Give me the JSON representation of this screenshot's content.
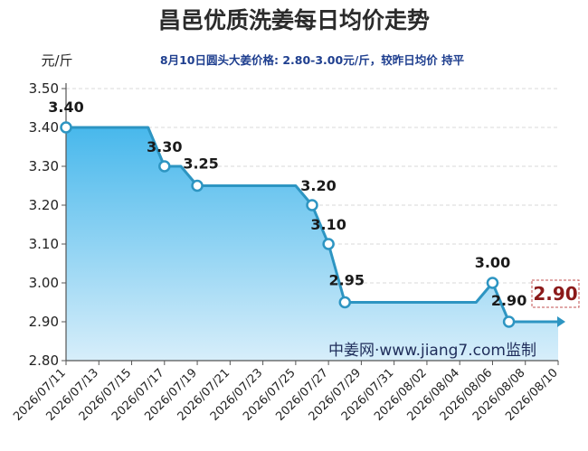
{
  "header": {
    "title": "昌邑优质洗姜每日均价走势",
    "subtitle": "8月10日圆头大姜价格: 2.80-3.00元/斤，较昨日均价 持平",
    "unit": "元/斤",
    "watermark": "中姜网·www.jiang7.com监制"
  },
  "colors": {
    "line": "#2d95c2",
    "area_top": "#48b8ec",
    "area_bottom": "#d7eefa",
    "grid": "#d8d8d8",
    "latest_text": "#8b1a1a",
    "latest_border": "#c05050"
  },
  "chart_data": {
    "type": "area",
    "title": "昌邑优质洗姜每日均价走势",
    "ylabel": "元/斤",
    "ylim": [
      2.8,
      3.5
    ],
    "yticks": [
      "2.80",
      "2.90",
      "3.00",
      "3.10",
      "3.20",
      "3.30",
      "3.40",
      "3.50"
    ],
    "xticks": [
      "2026/07/11",
      "2026/07/13",
      "2026/07/15",
      "2026/07/17",
      "2026/07/19",
      "2026/07/21",
      "2026/07/23",
      "2026/07/25",
      "2026/07/27",
      "2026/07/29",
      "2026/07/31",
      "2026/08/02",
      "2026/08/04",
      "2026/08/06",
      "2026/08/08",
      "2026/08/10"
    ],
    "grid": true,
    "x": [
      "2026/07/11",
      "2026/07/16",
      "2026/07/17",
      "2026/07/18",
      "2026/07/19",
      "2026/07/25",
      "2026/07/26",
      "2026/07/27",
      "2026/07/28",
      "2026/08/05",
      "2026/08/06",
      "2026/08/07",
      "2026/08/10"
    ],
    "y": [
      3.4,
      3.4,
      3.3,
      3.3,
      3.25,
      3.25,
      3.2,
      3.1,
      2.95,
      2.95,
      3.0,
      2.9,
      2.9
    ],
    "labeled_points": [
      {
        "x": "2026/07/11",
        "y": 3.4,
        "label": "3.40"
      },
      {
        "x": "2026/07/17",
        "y": 3.3,
        "label": "3.30"
      },
      {
        "x": "2026/07/19",
        "y": 3.25,
        "label": "3.25"
      },
      {
        "x": "2026/07/26",
        "y": 3.2,
        "label": "3.20"
      },
      {
        "x": "2026/07/27",
        "y": 3.1,
        "label": "3.10"
      },
      {
        "x": "2026/07/28",
        "y": 2.95,
        "label": "2.95"
      },
      {
        "x": "2026/08/06",
        "y": 3.0,
        "label": "3.00"
      },
      {
        "x": "2026/08/07",
        "y": 2.9,
        "label": "2.90"
      }
    ],
    "latest": {
      "x": "2026/08/10",
      "y": 2.9,
      "label": "2.90"
    }
  }
}
